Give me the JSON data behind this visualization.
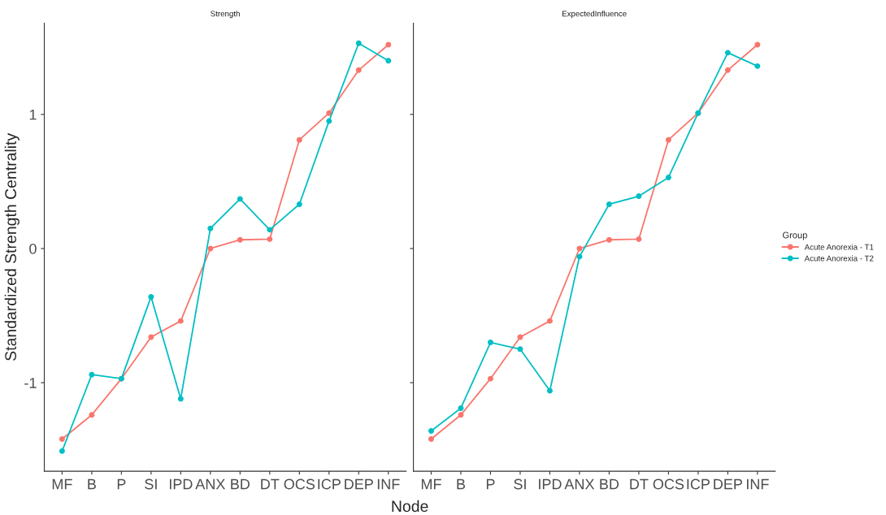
{
  "chart_data": [
    {
      "type": "line",
      "title": "Strength",
      "xlabel": "Node",
      "ylabel": "Standardized Strength Centrality",
      "categories": [
        "MF",
        "B",
        "P",
        "SI",
        "IPD",
        "ANX",
        "BD",
        "DT",
        "OCS",
        "ICP",
        "DEP",
        "INF"
      ],
      "series": [
        {
          "color": "#f8766d",
          "values": [
            -1.42,
            -1.24,
            -0.97,
            -0.66,
            -0.54,
            0.0,
            0.065,
            0.07,
            0.81,
            1.01,
            1.33,
            1.52
          ]
        },
        {
          "color": "#00bfc4",
          "values": [
            -1.51,
            -0.94,
            -0.97,
            -0.36,
            -1.12,
            0.15,
            0.37,
            0.14,
            0.33,
            0.95,
            1.53,
            1.4
          ]
        }
      ],
      "ylim": [
        -1.66,
        1.68
      ],
      "yticks": [
        -1,
        0,
        1
      ],
      "grid": false,
      "marker": "circle",
      "line_style": "solid"
    },
    {
      "type": "line",
      "title": "ExpectedInfluence",
      "legend_title": "Group",
      "categories": [
        "MF",
        "B",
        "P",
        "SI",
        "IPD",
        "ANX",
        "BD",
        "DT",
        "OCS",
        "ICP",
        "DEP",
        "INF"
      ],
      "series": [
        {
          "name": "Acute Anorexia - T1",
          "color": "#f8766d",
          "values": [
            -1.42,
            -1.24,
            -0.97,
            -0.66,
            -0.54,
            0.0,
            0.065,
            0.07,
            0.81,
            1.01,
            1.33,
            1.52
          ]
        },
        {
          "name": "Acute Anorexia - T2",
          "color": "#00bfc4",
          "values": [
            -1.36,
            -1.19,
            -0.7,
            -0.75,
            -1.06,
            -0.06,
            0.33,
            0.39,
            0.53,
            1.01,
            1.46,
            1.36
          ]
        }
      ],
      "ylim": [
        -1.66,
        1.68
      ],
      "yticks": [
        -1,
        0,
        1
      ],
      "tick_labels": "x",
      "grid": false,
      "marker": "circle",
      "line_style": "solid",
      "legend": "right"
    }
  ]
}
